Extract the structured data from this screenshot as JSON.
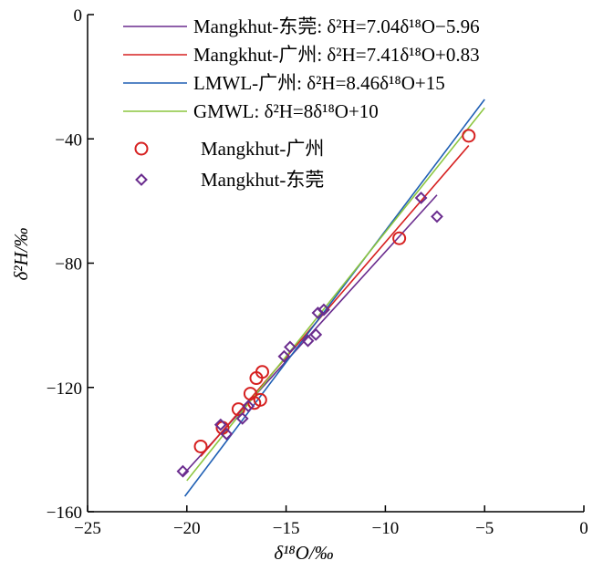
{
  "chart_data": {
    "type": "scatter",
    "xlabel": "δ¹⁸O/‰",
    "ylabel": "δ²H/‰",
    "xlim": [
      -25,
      0
    ],
    "ylim": [
      -160,
      0
    ],
    "xticks": [
      -25,
      -20,
      -15,
      -10,
      -5,
      0
    ],
    "xtick_labels": [
      "−25",
      "−20",
      "−15",
      "−10",
      "−5",
      "0"
    ],
    "yticks": [
      -160,
      -120,
      -80,
      -40,
      0
    ],
    "ytick_labels": [
      "−160",
      "−120",
      "−80",
      "−40",
      "0"
    ],
    "grid": false,
    "legend_position": "top-left",
    "lines": [
      {
        "name": "Mangkhut-东莞: δ²H=7.04δ¹⁸O−5.96",
        "slope": 7.04,
        "intercept": -5.96,
        "x_range": [
          -20.2,
          -7.4
        ],
        "color": "#6a2c8e"
      },
      {
        "name": "Mangkhut-广州: δ²H=7.41δ¹⁸O+0.83",
        "slope": 7.41,
        "intercept": 0.83,
        "x_range": [
          -19.3,
          -5.8
        ],
        "color": "#d62020"
      },
      {
        "name": "LMWL-广州: δ²H=8.46δ¹⁸O+15",
        "slope": 8.46,
        "intercept": 15,
        "x_range": [
          -20.1,
          -5.0
        ],
        "color": "#1f5fb4"
      },
      {
        "name": "GMWL: δ²H=8δ¹⁸O+10",
        "slope": 8,
        "intercept": 10,
        "x_range": [
          -20.0,
          -5.0
        ],
        "color": "#8cc63f"
      }
    ],
    "series": [
      {
        "name": "Mangkhut-广州",
        "marker": "circle",
        "color": "#d62020",
        "points": [
          [
            -19.3,
            -139
          ],
          [
            -18.2,
            -133
          ],
          [
            -17.4,
            -127
          ],
          [
            -16.8,
            -122
          ],
          [
            -16.6,
            -125
          ],
          [
            -16.5,
            -117
          ],
          [
            -16.3,
            -124
          ],
          [
            -16.2,
            -115
          ],
          [
            -9.3,
            -72
          ],
          [
            -5.8,
            -39
          ]
        ]
      },
      {
        "name": "Mangkhut-东莞",
        "marker": "diamond",
        "color": "#6a2c8e",
        "points": [
          [
            -20.2,
            -147
          ],
          [
            -18.3,
            -132
          ],
          [
            -18.0,
            -135
          ],
          [
            -17.2,
            -130
          ],
          [
            -16.9,
            -126
          ],
          [
            -15.1,
            -110
          ],
          [
            -14.8,
            -107
          ],
          [
            -13.9,
            -105
          ],
          [
            -13.5,
            -103
          ],
          [
            -13.4,
            -96
          ],
          [
            -13.1,
            -95
          ],
          [
            -8.2,
            -59
          ],
          [
            -7.4,
            -65
          ]
        ]
      }
    ]
  }
}
